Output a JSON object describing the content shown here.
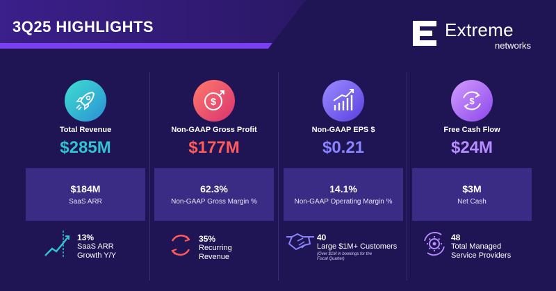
{
  "header": {
    "title": "3Q25 HIGHLIGHTS",
    "logo_word": "Extreme",
    "logo_sub": "networks",
    "logo_icon": "extreme-e-icon"
  },
  "colors": {
    "background": "#1f1454",
    "banner": "#34207a",
    "accent_purple": "#7b3ff2",
    "teal": "#33c2cf",
    "coral": "#ff5b5b",
    "periwinkle": "#8a85ff",
    "violet": "#b78cff",
    "box": "#3a2b85"
  },
  "metrics": [
    {
      "icon": "rocket-icon",
      "label": "Total Revenue",
      "value": "$285M",
      "box_value": "$184M",
      "box_label": "SaaS ARR",
      "stat_icon": "growth-chart-icon",
      "stat_value": "13%",
      "stat_lines": [
        "SaaS ARR",
        "Growth Y/Y"
      ]
    },
    {
      "icon": "dollar-arrow-icon",
      "label": "Non-GAAP Gross Profit",
      "value": "$177M",
      "box_value": "62.3%",
      "box_label": "Non-GAAP Gross Margin %",
      "stat_icon": "recurring-arrows-icon",
      "stat_value": "35%",
      "stat_lines": [
        "Recurring",
        "Revenue"
      ]
    },
    {
      "icon": "bar-growth-icon",
      "label": "Non-GAAP EPS $",
      "value": "$0.21",
      "box_value": "14.1%",
      "box_label": "Non-GAAP Operating Margin %",
      "stat_icon": "handshake-icon",
      "stat_value": "40",
      "stat_lines": [
        "Large $1M+ Customers"
      ],
      "stat_note_lines": [
        "(Over $1M in bookings for the",
        "Fiscal Quarter)"
      ]
    },
    {
      "icon": "cycle-dollar-icon",
      "label": "Free Cash Flow",
      "value": "$24M",
      "box_value": "$3M",
      "box_label": "Net Cash",
      "stat_icon": "gear-cycle-icon",
      "stat_value": "48",
      "stat_lines": [
        "Total Managed",
        "Service Providers"
      ]
    }
  ]
}
